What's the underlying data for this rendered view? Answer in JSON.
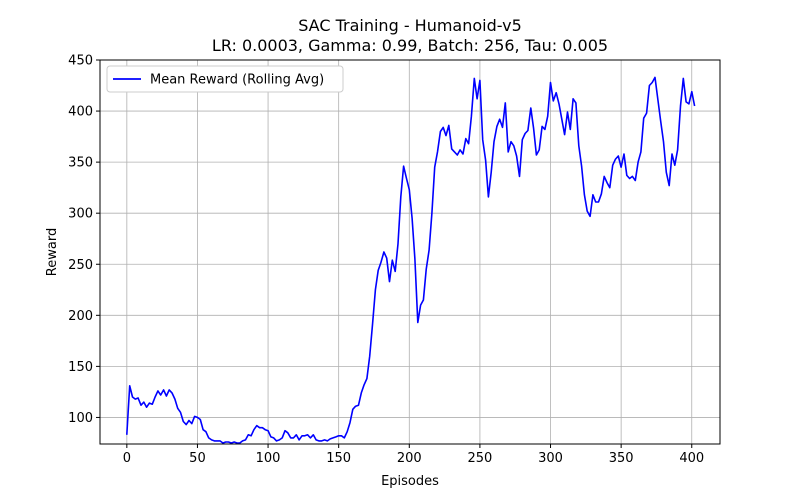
{
  "chart_data": {
    "type": "line",
    "title_line1": "SAC Training - Humanoid-v5",
    "title_line2": "LR: 0.0003, Gamma: 0.99, Batch: 256, Tau: 0.005",
    "xlabel": "Episodes",
    "ylabel": "Reward",
    "xlim": [
      -19,
      420
    ],
    "ylim": [
      74,
      450
    ],
    "xticks": [
      0,
      50,
      100,
      150,
      200,
      250,
      300,
      350,
      400
    ],
    "yticks": [
      100,
      150,
      200,
      250,
      300,
      350,
      400,
      450
    ],
    "grid": true,
    "legend_position": "upper-left",
    "series": [
      {
        "name": "Mean Reward (Rolling Avg)",
        "color": "#0000ff",
        "points": [
          [
            0,
            83
          ],
          [
            2,
            131
          ],
          [
            4,
            120
          ],
          [
            6,
            118
          ],
          [
            8,
            119
          ],
          [
            10,
            112
          ],
          [
            12,
            115
          ],
          [
            14,
            110
          ],
          [
            16,
            114
          ],
          [
            18,
            113
          ],
          [
            20,
            120
          ],
          [
            22,
            126
          ],
          [
            24,
            122
          ],
          [
            26,
            127
          ],
          [
            28,
            121
          ],
          [
            30,
            127
          ],
          [
            32,
            124
          ],
          [
            34,
            118
          ],
          [
            36,
            109
          ],
          [
            38,
            105
          ],
          [
            40,
            96
          ],
          [
            42,
            93
          ],
          [
            44,
            97
          ],
          [
            46,
            94
          ],
          [
            48,
            101
          ],
          [
            50,
            100
          ],
          [
            52,
            98
          ],
          [
            54,
            88
          ],
          [
            56,
            86
          ],
          [
            58,
            80
          ],
          [
            60,
            78
          ],
          [
            62,
            77
          ],
          [
            64,
            77
          ],
          [
            66,
            77
          ],
          [
            68,
            75
          ],
          [
            70,
            76
          ],
          [
            72,
            76
          ],
          [
            74,
            75
          ],
          [
            76,
            76
          ],
          [
            78,
            75
          ],
          [
            80,
            75
          ],
          [
            82,
            77
          ],
          [
            84,
            78
          ],
          [
            86,
            83
          ],
          [
            88,
            82
          ],
          [
            90,
            88
          ],
          [
            92,
            92
          ],
          [
            94,
            90
          ],
          [
            96,
            90
          ],
          [
            98,
            88
          ],
          [
            100,
            87
          ],
          [
            102,
            81
          ],
          [
            104,
            80
          ],
          [
            106,
            77
          ],
          [
            108,
            78
          ],
          [
            110,
            80
          ],
          [
            112,
            87
          ],
          [
            114,
            85
          ],
          [
            116,
            80
          ],
          [
            118,
            80
          ],
          [
            120,
            83
          ],
          [
            122,
            78
          ],
          [
            124,
            82
          ],
          [
            126,
            82
          ],
          [
            128,
            83
          ],
          [
            130,
            80
          ],
          [
            132,
            83
          ],
          [
            134,
            78
          ],
          [
            136,
            77
          ],
          [
            138,
            77
          ],
          [
            140,
            78
          ],
          [
            142,
            77
          ],
          [
            144,
            79
          ],
          [
            146,
            80
          ],
          [
            148,
            81
          ],
          [
            150,
            82
          ],
          [
            152,
            82
          ],
          [
            154,
            80
          ],
          [
            156,
            86
          ],
          [
            158,
            95
          ],
          [
            160,
            108
          ],
          [
            162,
            111
          ],
          [
            164,
            112
          ],
          [
            166,
            124
          ],
          [
            168,
            132
          ],
          [
            170,
            138
          ],
          [
            172,
            160
          ],
          [
            174,
            192
          ],
          [
            176,
            225
          ],
          [
            178,
            244
          ],
          [
            180,
            252
          ],
          [
            182,
            262
          ],
          [
            184,
            256
          ],
          [
            186,
            233
          ],
          [
            188,
            254
          ],
          [
            190,
            243
          ],
          [
            192,
            270
          ],
          [
            194,
            316
          ],
          [
            196,
            346
          ],
          [
            198,
            334
          ],
          [
            200,
            323
          ],
          [
            202,
            295
          ],
          [
            204,
            255
          ],
          [
            206,
            193
          ],
          [
            208,
            210
          ],
          [
            210,
            215
          ],
          [
            212,
            245
          ],
          [
            214,
            264
          ],
          [
            216,
            300
          ],
          [
            218,
            345
          ],
          [
            220,
            360
          ],
          [
            222,
            380
          ],
          [
            224,
            384
          ],
          [
            226,
            376
          ],
          [
            228,
            386
          ],
          [
            230,
            363
          ],
          [
            232,
            360
          ],
          [
            234,
            357
          ],
          [
            236,
            362
          ],
          [
            238,
            358
          ],
          [
            240,
            373
          ],
          [
            242,
            368
          ],
          [
            244,
            395
          ],
          [
            246,
            432
          ],
          [
            248,
            412
          ],
          [
            250,
            430
          ],
          [
            252,
            372
          ],
          [
            254,
            352
          ],
          [
            256,
            316
          ],
          [
            258,
            340
          ],
          [
            260,
            370
          ],
          [
            262,
            385
          ],
          [
            264,
            392
          ],
          [
            266,
            384
          ],
          [
            268,
            408
          ],
          [
            270,
            360
          ],
          [
            272,
            370
          ],
          [
            274,
            366
          ],
          [
            276,
            356
          ],
          [
            278,
            336
          ],
          [
            280,
            372
          ],
          [
            282,
            378
          ],
          [
            284,
            381
          ],
          [
            286,
            403
          ],
          [
            288,
            383
          ],
          [
            290,
            357
          ],
          [
            292,
            362
          ],
          [
            294,
            385
          ],
          [
            296,
            382
          ],
          [
            298,
            395
          ],
          [
            300,
            428
          ],
          [
            302,
            410
          ],
          [
            304,
            418
          ],
          [
            306,
            407
          ],
          [
            308,
            392
          ],
          [
            310,
            377
          ],
          [
            312,
            399
          ],
          [
            314,
            382
          ],
          [
            316,
            412
          ],
          [
            318,
            408
          ],
          [
            320,
            366
          ],
          [
            322,
            346
          ],
          [
            324,
            318
          ],
          [
            326,
            302
          ],
          [
            328,
            297
          ],
          [
            330,
            318
          ],
          [
            332,
            311
          ],
          [
            334,
            311
          ],
          [
            336,
            319
          ],
          [
            338,
            336
          ],
          [
            340,
            330
          ],
          [
            342,
            325
          ],
          [
            344,
            347
          ],
          [
            346,
            353
          ],
          [
            348,
            356
          ],
          [
            350,
            345
          ],
          [
            352,
            358
          ],
          [
            354,
            337
          ],
          [
            356,
            334
          ],
          [
            358,
            336
          ],
          [
            360,
            332
          ],
          [
            362,
            350
          ],
          [
            364,
            360
          ],
          [
            366,
            393
          ],
          [
            368,
            398
          ],
          [
            370,
            425
          ],
          [
            372,
            428
          ],
          [
            374,
            433
          ],
          [
            376,
            411
          ],
          [
            378,
            390
          ],
          [
            380,
            370
          ],
          [
            382,
            340
          ],
          [
            384,
            327
          ],
          [
            386,
            358
          ],
          [
            388,
            347
          ],
          [
            390,
            362
          ],
          [
            392,
            405
          ],
          [
            394,
            432
          ],
          [
            396,
            409
          ],
          [
            398,
            407
          ],
          [
            400,
            419
          ],
          [
            402,
            405
          ]
        ]
      }
    ]
  }
}
